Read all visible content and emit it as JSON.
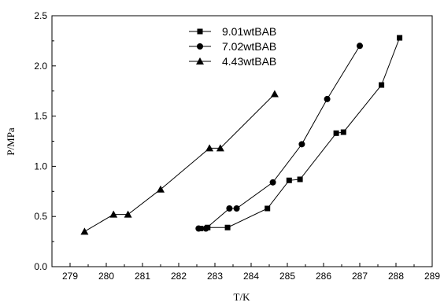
{
  "chart_data": {
    "type": "line",
    "title": "",
    "xlabel": "T/K",
    "ylabel": "P/MPa",
    "xlim": [
      278.5,
      289
    ],
    "ylim": [
      0.0,
      2.5
    ],
    "xticks": [
      "279",
      "280",
      "281",
      "282",
      "283",
      "284",
      "285",
      "286",
      "287",
      "288",
      "289"
    ],
    "yticks": [
      "0.0",
      "0.5",
      "1.0",
      "1.5",
      "2.0",
      "2.5"
    ],
    "grid": false,
    "legend_position": "top-center",
    "series": [
      {
        "name": "9.01wtBAB",
        "marker": "square",
        "color": "#000000",
        "x": [
          282.6,
          282.8,
          283.35,
          284.45,
          285.05,
          285.35,
          286.35,
          286.55,
          287.6,
          288.1
        ],
        "y": [
          0.38,
          0.39,
          0.39,
          0.58,
          0.86,
          0.87,
          1.33,
          1.34,
          1.81,
          2.28
        ]
      },
      {
        "name": "7.02wtBAB",
        "marker": "circle",
        "color": "#000000",
        "x": [
          282.55,
          282.75,
          283.4,
          283.6,
          284.6,
          285.4,
          286.1,
          287.0
        ],
        "y": [
          0.38,
          0.38,
          0.58,
          0.58,
          0.84,
          1.22,
          1.67,
          2.2
        ]
      },
      {
        "name": "4.43wtBAB",
        "marker": "triangle",
        "color": "#000000",
        "x": [
          279.4,
          280.2,
          280.6,
          281.5,
          282.85,
          283.15,
          284.65
        ],
        "y": [
          0.35,
          0.52,
          0.52,
          0.77,
          1.18,
          1.18,
          1.72
        ]
      }
    ]
  }
}
